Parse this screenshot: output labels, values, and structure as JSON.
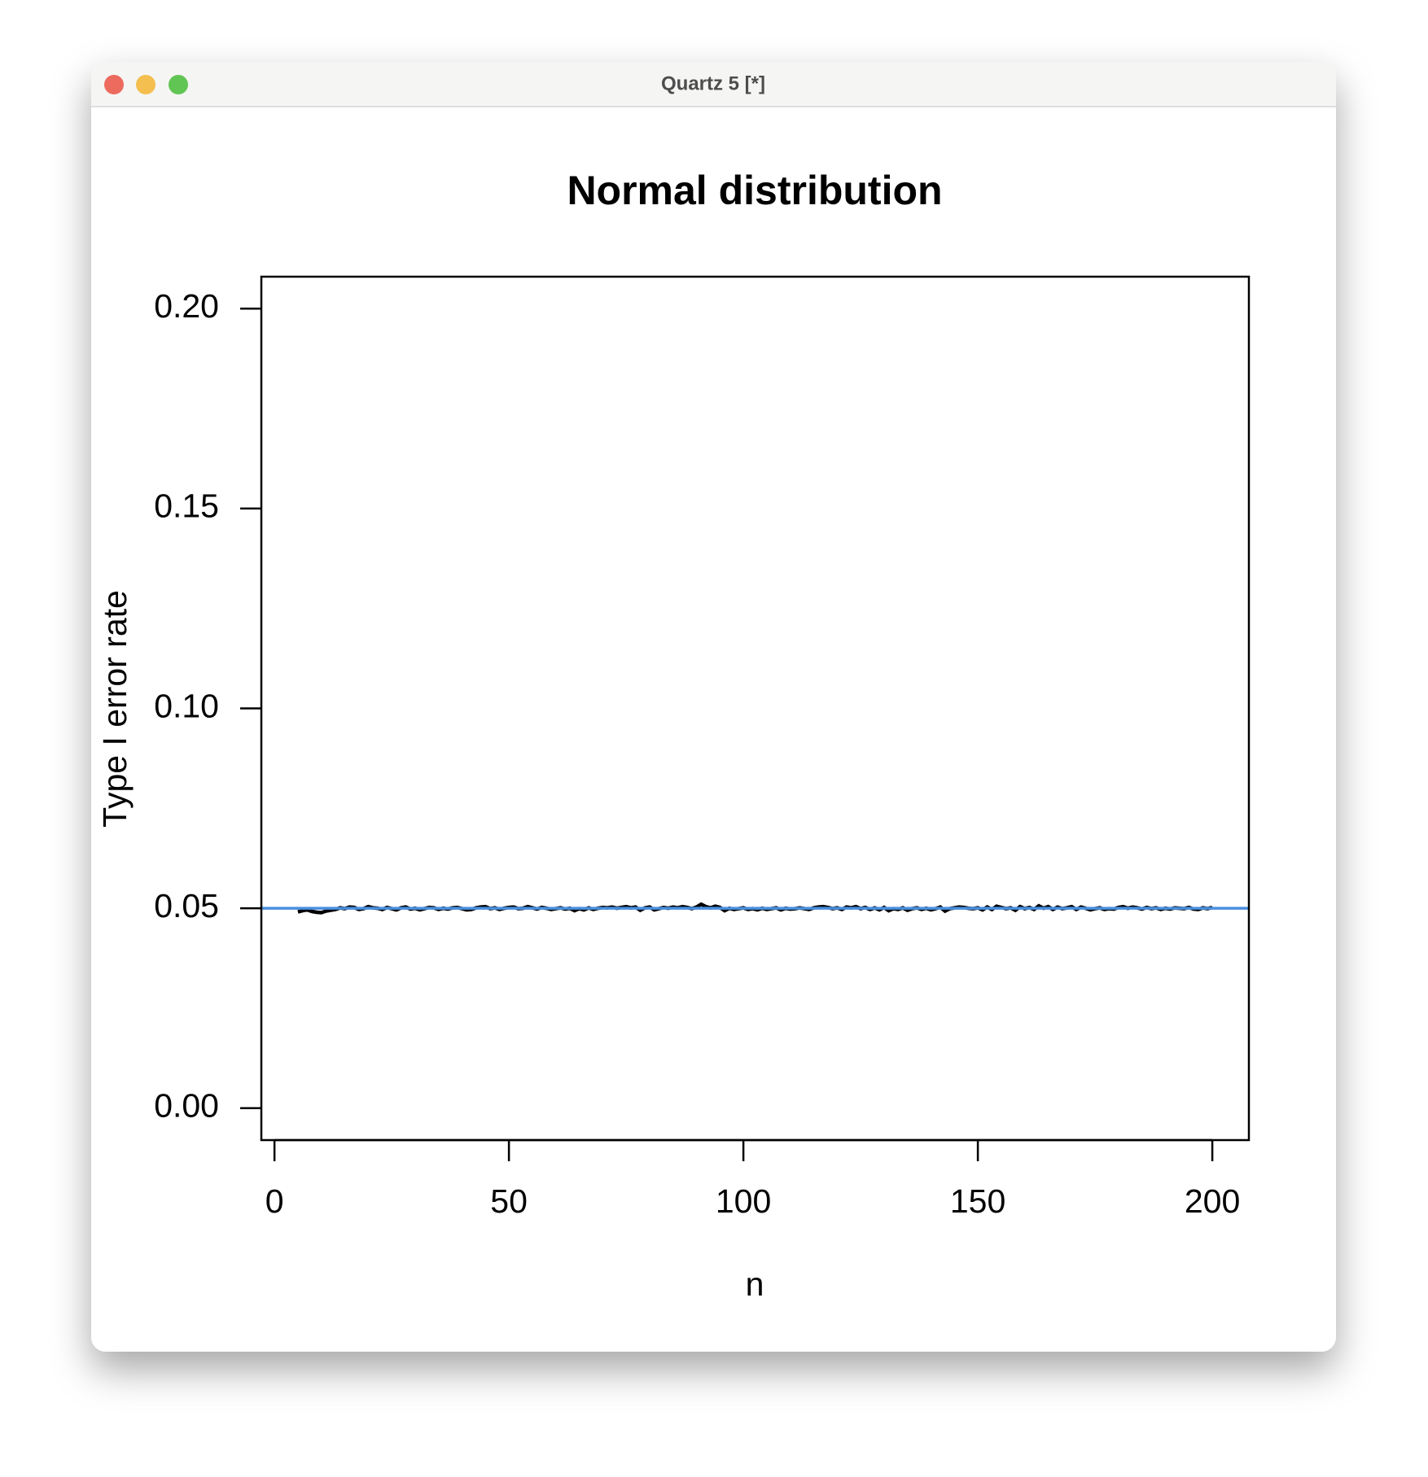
{
  "window": {
    "title": "Quartz 5 [*]"
  },
  "chart_data": {
    "type": "line",
    "title": "Normal distribution",
    "x_label": "n",
    "y_label": "Type I error rate",
    "xlim": [
      -2.8,
      207.8
    ],
    "ylim": [
      -0.008,
      0.208
    ],
    "xticks": [
      0,
      50,
      100,
      150,
      200
    ],
    "yticks": [
      {
        "value": 0,
        "label": "0.00"
      },
      {
        "value": 0.05,
        "label": "0.05"
      },
      {
        "value": 0.1,
        "label": "0.10"
      },
      {
        "value": 0.15,
        "label": "0.15"
      },
      {
        "value": 0.2,
        "label": "0.20"
      }
    ],
    "hline": {
      "value": 0.05,
      "color": "#4a8fe0"
    },
    "series": [
      {
        "color": "#000000",
        "x_start": 5,
        "x_step": 1,
        "values": [
          0.0491,
          0.0494,
          0.0496,
          0.0492,
          0.049,
          0.0489,
          0.0493,
          0.0495,
          0.0497,
          0.0501,
          0.0499,
          0.0503,
          0.0502,
          0.0497,
          0.0499,
          0.0504,
          0.0501,
          0.05,
          0.0497,
          0.0502,
          0.0499,
          0.0496,
          0.0501,
          0.0503,
          0.0498,
          0.05,
          0.0496,
          0.0499,
          0.0502,
          0.0501,
          0.0497,
          0.05,
          0.0498,
          0.0501,
          0.0502,
          0.0499,
          0.0496,
          0.0497,
          0.0501,
          0.0503,
          0.0504,
          0.0499,
          0.0501,
          0.0497,
          0.05,
          0.0502,
          0.0503,
          0.0499,
          0.05,
          0.0504,
          0.0501,
          0.0498,
          0.0502,
          0.05,
          0.0497,
          0.0499,
          0.0501,
          0.0498,
          0.05,
          0.0494,
          0.0499,
          0.0496,
          0.0501,
          0.0497,
          0.05,
          0.0502,
          0.0501,
          0.0503,
          0.05,
          0.0502,
          0.0504,
          0.0501,
          0.0503,
          0.0495,
          0.0501,
          0.0503,
          0.0496,
          0.0499,
          0.0502,
          0.05,
          0.0503,
          0.0501,
          0.0504,
          0.0502,
          0.0499,
          0.0503,
          0.051,
          0.0504,
          0.0501,
          0.0505,
          0.0502,
          0.0494,
          0.05,
          0.0497,
          0.0499,
          0.0501,
          0.0497,
          0.0499,
          0.0496,
          0.05,
          0.0497,
          0.0499,
          0.0501,
          0.0496,
          0.05,
          0.0498,
          0.0499,
          0.0501,
          0.0499,
          0.0497,
          0.0501,
          0.0503,
          0.0504,
          0.0502,
          0.0499,
          0.0501,
          0.0497,
          0.0503,
          0.0501,
          0.0504,
          0.0499,
          0.0502,
          0.0497,
          0.0501,
          0.0496,
          0.0502,
          0.0494,
          0.0499,
          0.0497,
          0.0501,
          0.0495,
          0.0499,
          0.0501,
          0.0497,
          0.05,
          0.0496,
          0.0499,
          0.0503,
          0.0493,
          0.0499,
          0.0501,
          0.0503,
          0.0502,
          0.05,
          0.0499,
          0.0501,
          0.0496,
          0.0503,
          0.0497,
          0.0505,
          0.0502,
          0.0499,
          0.0501,
          0.0495,
          0.0504,
          0.0499,
          0.0502,
          0.0497,
          0.0506,
          0.05,
          0.0504,
          0.0497,
          0.0503,
          0.0499,
          0.0501,
          0.0504,
          0.0497,
          0.0503,
          0.05,
          0.0496,
          0.0499,
          0.0501,
          0.0497,
          0.0499,
          0.0498,
          0.0502,
          0.0504,
          0.05,
          0.0503,
          0.0501,
          0.0498,
          0.0502,
          0.0499,
          0.0501,
          0.0497,
          0.05,
          0.0498,
          0.0501,
          0.05,
          0.0499,
          0.0502,
          0.0498,
          0.0497,
          0.0501,
          0.0499,
          0.0502
        ]
      }
    ]
  }
}
